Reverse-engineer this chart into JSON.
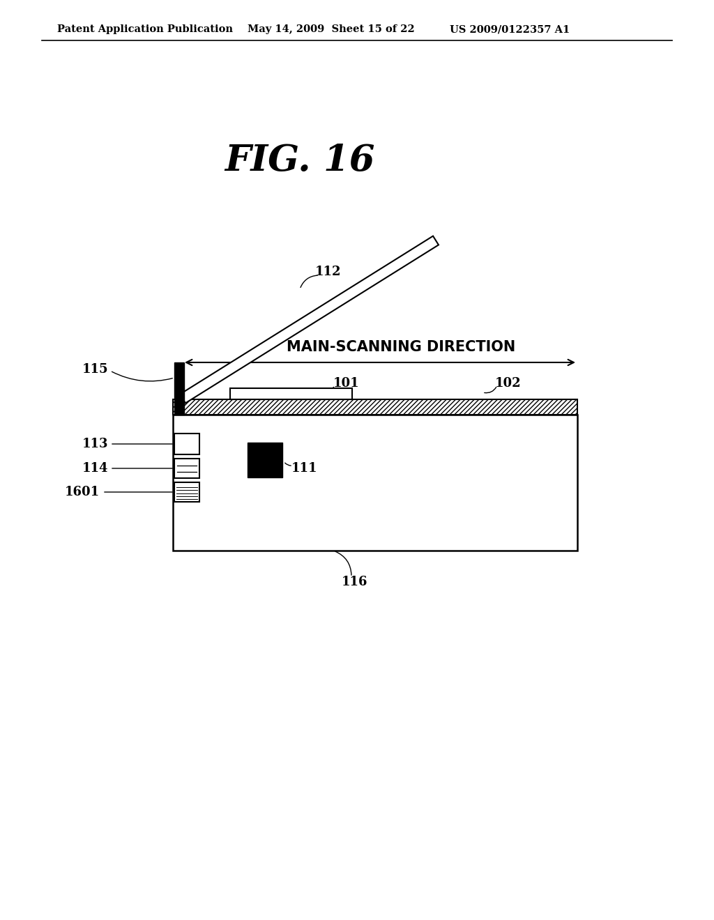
{
  "bg_color": "#ffffff",
  "header_text": "Patent Application Publication",
  "header_date": "May 14, 2009  Sheet 15 of 22",
  "header_patent": "US 2009/0122357 A1",
  "fig_title": "FIG. 16",
  "label_112": "112",
  "label_101": "101",
  "label_102": "102",
  "label_115": "115",
  "label_113": "113",
  "label_114": "114",
  "label_1601": "1601",
  "label_111": "111",
  "label_116": "116",
  "direction_text": "MAIN-SCANNING DIRECTION"
}
